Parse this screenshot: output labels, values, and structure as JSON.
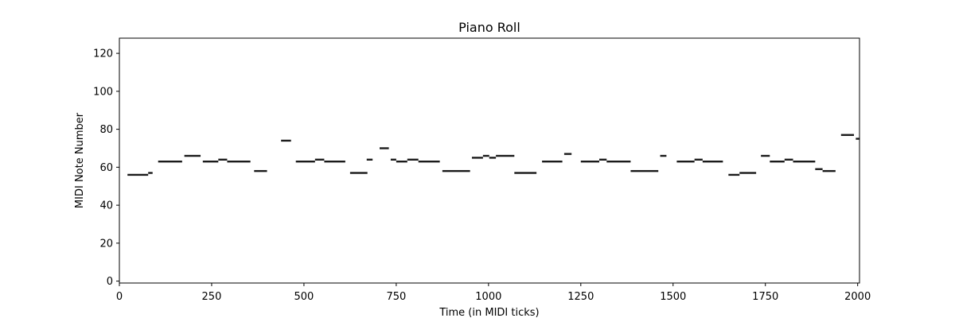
{
  "chart_data": {
    "type": "piano-roll",
    "title": "Piano Roll",
    "xlabel": "Time (in MIDI ticks)",
    "ylabel": "MIDI Note Number",
    "xlim": [
      0,
      2005
    ],
    "ylim": [
      -1,
      128
    ],
    "xticks": [
      0,
      250,
      500,
      750,
      1000,
      1250,
      1500,
      1750,
      2000
    ],
    "yticks": [
      0,
      20,
      40,
      60,
      80,
      100,
      120
    ],
    "grid": false,
    "note_color": "#1a1a1a",
    "notes": [
      {
        "start": 22,
        "end": 78,
        "pitch": 56
      },
      {
        "start": 78,
        "end": 90,
        "pitch": 57
      },
      {
        "start": 105,
        "end": 170,
        "pitch": 63
      },
      {
        "start": 176,
        "end": 220,
        "pitch": 66
      },
      {
        "start": 226,
        "end": 268,
        "pitch": 63
      },
      {
        "start": 268,
        "end": 292,
        "pitch": 64
      },
      {
        "start": 292,
        "end": 355,
        "pitch": 63
      },
      {
        "start": 365,
        "end": 400,
        "pitch": 58
      },
      {
        "start": 438,
        "end": 465,
        "pitch": 74
      },
      {
        "start": 478,
        "end": 530,
        "pitch": 63
      },
      {
        "start": 530,
        "end": 555,
        "pitch": 64
      },
      {
        "start": 555,
        "end": 612,
        "pitch": 63
      },
      {
        "start": 625,
        "end": 672,
        "pitch": 57
      },
      {
        "start": 670,
        "end": 686,
        "pitch": 64
      },
      {
        "start": 705,
        "end": 730,
        "pitch": 70
      },
      {
        "start": 735,
        "end": 750,
        "pitch": 64
      },
      {
        "start": 750,
        "end": 780,
        "pitch": 63
      },
      {
        "start": 780,
        "end": 810,
        "pitch": 64
      },
      {
        "start": 810,
        "end": 868,
        "pitch": 63
      },
      {
        "start": 875,
        "end": 950,
        "pitch": 58
      },
      {
        "start": 955,
        "end": 985,
        "pitch": 65
      },
      {
        "start": 985,
        "end": 1002,
        "pitch": 66
      },
      {
        "start": 1002,
        "end": 1020,
        "pitch": 65
      },
      {
        "start": 1020,
        "end": 1070,
        "pitch": 66
      },
      {
        "start": 1070,
        "end": 1130,
        "pitch": 57
      },
      {
        "start": 1145,
        "end": 1200,
        "pitch": 63
      },
      {
        "start": 1205,
        "end": 1225,
        "pitch": 67
      },
      {
        "start": 1250,
        "end": 1300,
        "pitch": 63
      },
      {
        "start": 1300,
        "end": 1320,
        "pitch": 64
      },
      {
        "start": 1320,
        "end": 1385,
        "pitch": 63
      },
      {
        "start": 1385,
        "end": 1460,
        "pitch": 58
      },
      {
        "start": 1465,
        "end": 1482,
        "pitch": 66
      },
      {
        "start": 1510,
        "end": 1558,
        "pitch": 63
      },
      {
        "start": 1558,
        "end": 1580,
        "pitch": 64
      },
      {
        "start": 1580,
        "end": 1635,
        "pitch": 63
      },
      {
        "start": 1650,
        "end": 1680,
        "pitch": 56
      },
      {
        "start": 1680,
        "end": 1725,
        "pitch": 57
      },
      {
        "start": 1738,
        "end": 1762,
        "pitch": 66
      },
      {
        "start": 1762,
        "end": 1802,
        "pitch": 63
      },
      {
        "start": 1802,
        "end": 1825,
        "pitch": 64
      },
      {
        "start": 1825,
        "end": 1885,
        "pitch": 63
      },
      {
        "start": 1885,
        "end": 1905,
        "pitch": 59
      },
      {
        "start": 1905,
        "end": 1940,
        "pitch": 58
      },
      {
        "start": 1955,
        "end": 1990,
        "pitch": 77
      },
      {
        "start": 1995,
        "end": 2005,
        "pitch": 75
      }
    ]
  }
}
